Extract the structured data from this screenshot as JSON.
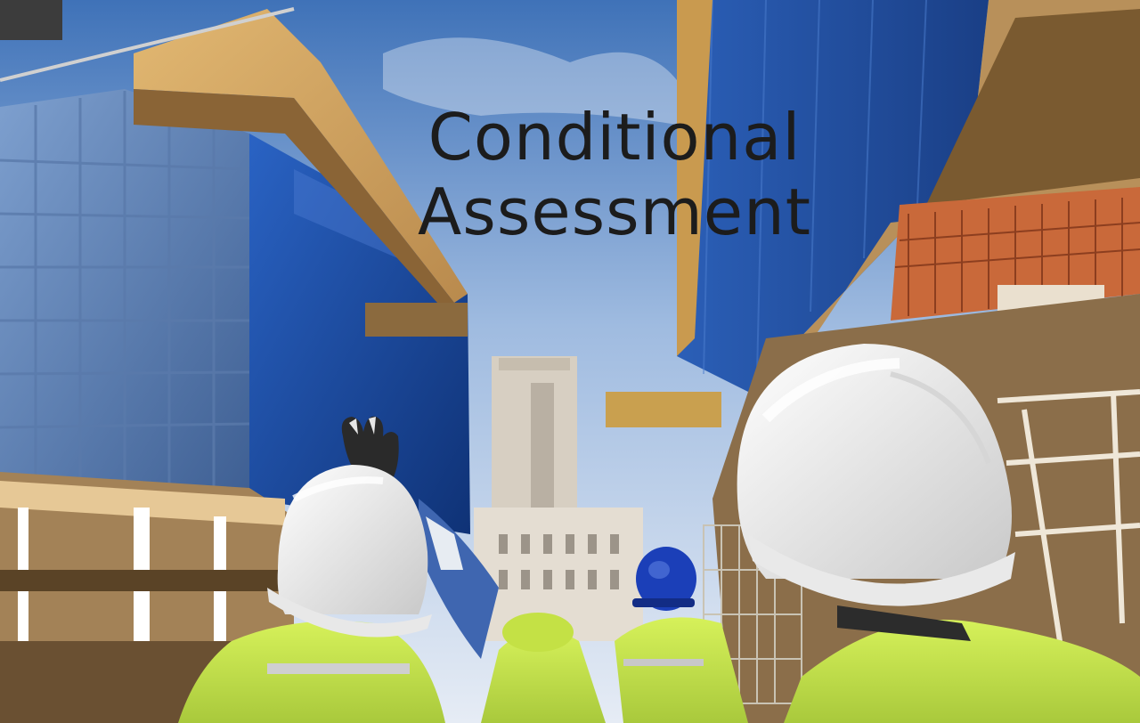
{
  "title": {
    "line1": "Conditional",
    "line2": "Assessment"
  },
  "colors": {
    "sky_top": "#3f72b8",
    "sky_bottom": "#dfe7f2",
    "glass_blue": "#1d4ea3",
    "helmet_white": "#f4f4f4",
    "vest_yellow": "#c6e84a",
    "helmet_blue": "#1b3fb8",
    "text": "#1c1c1c"
  }
}
